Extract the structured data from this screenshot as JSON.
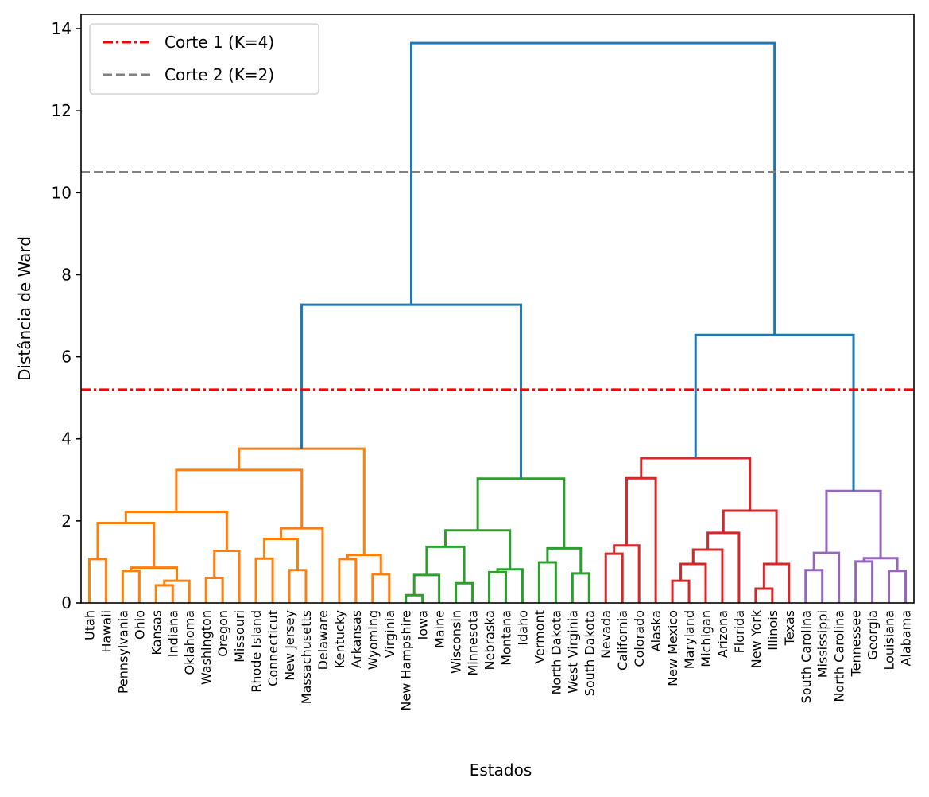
{
  "chart_data": {
    "type": "dendrogram",
    "title": "",
    "xlabel": "Estados",
    "ylabel": "Distância de Ward",
    "ylim": [
      0,
      14.35
    ],
    "y_ticks": [
      0,
      2,
      4,
      6,
      8,
      10,
      12,
      14
    ],
    "grid": false,
    "legend_position": "top-left",
    "above_threshold_color": "#1f77b4",
    "leaves": [
      "Utah",
      "Hawaii",
      "Pennsylvania",
      "Ohio",
      "Kansas",
      "Indiana",
      "Oklahoma",
      "Washington",
      "Oregon",
      "Missouri",
      "Rhode Island",
      "Connecticut",
      "New Jersey",
      "Massachusetts",
      "Delaware",
      "Kentucky",
      "Arkansas",
      "Wyoming",
      "Virginia",
      "New Hampshire",
      "Iowa",
      "Maine",
      "Wisconsin",
      "Minnesota",
      "Nebraska",
      "Montana",
      "Idaho",
      "Vermont",
      "North Dakota",
      "West Virginia",
      "South Dakota",
      "Nevada",
      "California",
      "Colorado",
      "Alaska",
      "New Mexico",
      "Maryland",
      "Michigan",
      "Arizona",
      "Florida",
      "New York",
      "Illinois",
      "Texas",
      "South Carolina",
      "Mississippi",
      "North Carolina",
      "Tennessee",
      "Georgia",
      "Louisiana",
      "Alabama"
    ],
    "cut_lines": [
      {
        "label": "Corte 1 (K=4)",
        "y": 5.2,
        "color": "#ff0000",
        "style": "dashdot"
      },
      {
        "label": "Corte 2 (K=2)",
        "y": 10.5,
        "color": "#808080",
        "style": "dashed"
      }
    ],
    "tree": {
      "h": 13.65,
      "c": [
        {
          "h": 7.27,
          "c": [
            {
              "h": 3.76,
              "color": "#ff7f0e",
              "c": [
                {
                  "h": 3.24,
                  "c": [
                    {
                      "h": 2.22,
                      "c": [
                        {
                          "h": 1.95,
                          "c": [
                            {
                              "h": 1.07,
                              "c": [
                                "Utah",
                                "Hawaii"
                              ]
                            },
                            {
                              "h": 0.86,
                              "c": [
                                {
                                  "h": 0.78,
                                  "c": [
                                    "Pennsylvania",
                                    "Ohio"
                                  ]
                                },
                                {
                                  "h": 0.54,
                                  "c": [
                                    {
                                      "h": 0.43,
                                      "c": [
                                        "Kansas",
                                        "Indiana"
                                      ]
                                    },
                                    "Oklahoma"
                                  ]
                                }
                              ]
                            }
                          ]
                        },
                        {
                          "h": 1.27,
                          "c": [
                            {
                              "h": 0.61,
                              "c": [
                                "Washington",
                                "Oregon"
                              ]
                            },
                            "Missouri"
                          ]
                        }
                      ]
                    },
                    {
                      "h": 1.82,
                      "c": [
                        {
                          "h": 1.56,
                          "c": [
                            {
                              "h": 1.08,
                              "c": [
                                "Rhode Island",
                                "Connecticut"
                              ]
                            },
                            {
                              "h": 0.8,
                              "c": [
                                "New Jersey",
                                "Massachusetts"
                              ]
                            }
                          ]
                        },
                        "Delaware"
                      ]
                    }
                  ]
                },
                {
                  "h": 1.17,
                  "c": [
                    {
                      "h": 1.07,
                      "c": [
                        "Kentucky",
                        "Arkansas"
                      ]
                    },
                    {
                      "h": 0.7,
                      "c": [
                        "Wyoming",
                        "Virginia"
                      ]
                    }
                  ]
                }
              ]
            },
            {
              "h": 3.03,
              "color": "#2ca02c",
              "c": [
                {
                  "h": 1.77,
                  "c": [
                    {
                      "h": 1.37,
                      "c": [
                        {
                          "h": 0.68,
                          "c": [
                            {
                              "h": 0.19,
                              "c": [
                                "New Hampshire",
                                "Iowa"
                              ]
                            },
                            "Maine"
                          ]
                        },
                        {
                          "h": 0.48,
                          "c": [
                            "Wisconsin",
                            "Minnesota"
                          ]
                        }
                      ]
                    },
                    {
                      "h": 0.82,
                      "c": [
                        {
                          "h": 0.75,
                          "c": [
                            "Nebraska",
                            "Montana"
                          ]
                        },
                        "Idaho"
                      ]
                    }
                  ]
                },
                {
                  "h": 1.33,
                  "c": [
                    {
                      "h": 0.99,
                      "c": [
                        "Vermont",
                        "North Dakota"
                      ]
                    },
                    {
                      "h": 0.72,
                      "c": [
                        "West Virginia",
                        "South Dakota"
                      ]
                    }
                  ]
                }
              ]
            }
          ]
        },
        {
          "h": 6.53,
          "c": [
            {
              "h": 3.53,
              "color": "#d62728",
              "c": [
                {
                  "h": 3.04,
                  "c": [
                    {
                      "h": 1.4,
                      "c": [
                        {
                          "h": 1.2,
                          "c": [
                            "Nevada",
                            "California"
                          ]
                        },
                        "Colorado"
                      ]
                    },
                    "Alaska"
                  ]
                },
                {
                  "h": 2.25,
                  "c": [
                    {
                      "h": 1.71,
                      "c": [
                        {
                          "h": 1.3,
                          "c": [
                            {
                              "h": 0.95,
                              "c": [
                                {
                                  "h": 0.54,
                                  "c": [
                                    "New Mexico",
                                    "Maryland"
                                  ]
                                },
                                "Michigan"
                              ]
                            },
                            "Arizona"
                          ]
                        },
                        "Florida"
                      ]
                    },
                    {
                      "h": 0.95,
                      "c": [
                        {
                          "h": 0.35,
                          "c": [
                            "New York",
                            "Illinois"
                          ]
                        },
                        "Texas"
                      ]
                    }
                  ]
                }
              ]
            },
            {
              "h": 2.73,
              "color": "#9467bd",
              "c": [
                {
                  "h": 1.22,
                  "c": [
                    {
                      "h": 0.8,
                      "c": [
                        "South Carolina",
                        "Mississippi"
                      ]
                    },
                    "North Carolina"
                  ]
                },
                {
                  "h": 1.09,
                  "c": [
                    {
                      "h": 1.01,
                      "c": [
                        "Tennessee",
                        "Georgia"
                      ]
                    },
                    {
                      "h": 0.78,
                      "c": [
                        "Louisiana",
                        "Alabama"
                      ]
                    }
                  ]
                }
              ]
            }
          ]
        }
      ]
    }
  }
}
